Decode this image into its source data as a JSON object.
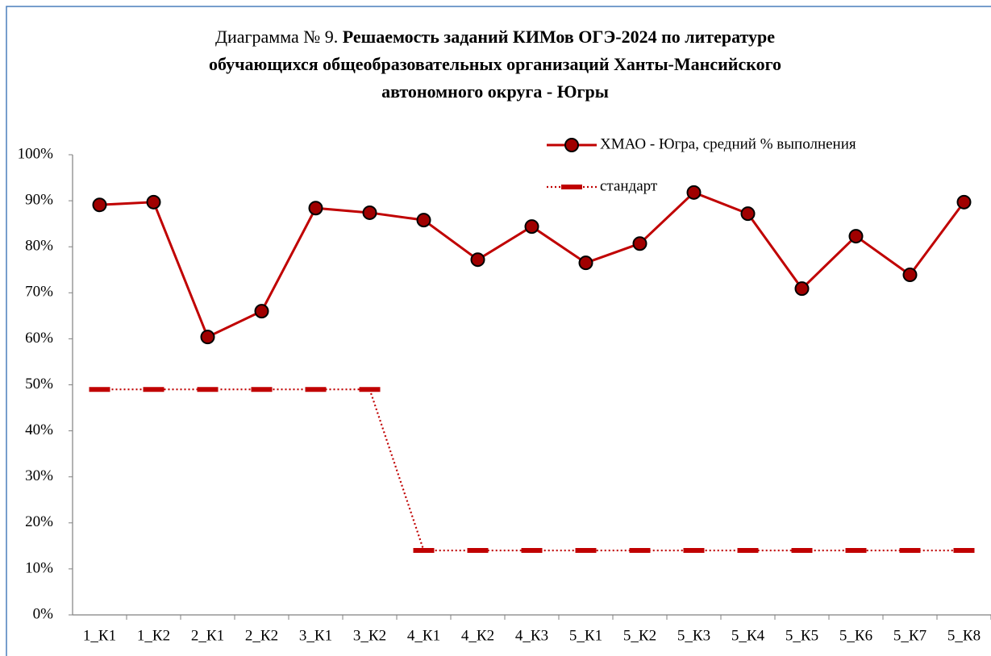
{
  "chart_data": {
    "type": "line",
    "title_prefix": "Диаграмма № 9.",
    "title_lines": [
      "Решаемость заданий КИМов ОГЭ-2024 по литературе",
      "обучающихся общеобразовательных  организаций Ханты-Мансийского",
      "автономного округа - Югры"
    ],
    "categories": [
      "1_К1",
      "1_К2",
      "2_К1",
      "2_К2",
      "3_К1",
      "3_К2",
      "4_К1",
      "4_К2",
      "4_К3",
      "5_К1",
      "5_К2",
      "5_К3",
      "5_К4",
      "5_К5",
      "5_К6",
      "5_К7",
      "5_К8"
    ],
    "series": [
      {
        "name": "ХМАО - Югра, средний % выполнения",
        "color": "#c00000",
        "style": "solid-marker",
        "values": [
          89.1,
          89.7,
          60.4,
          66.0,
          88.4,
          87.4,
          85.8,
          77.2,
          84.4,
          76.5,
          80.7,
          91.8,
          87.2,
          70.9,
          82.3,
          73.9,
          89.7
        ]
      },
      {
        "name": "стандарт",
        "color": "#c00000",
        "style": "dotted-dash",
        "values": [
          49,
          49,
          49,
          49,
          49,
          49,
          14,
          14,
          14,
          14,
          14,
          14,
          14,
          14,
          14,
          14,
          14
        ]
      }
    ],
    "ylim": [
      0,
      100
    ],
    "yticks": [
      {
        "value": 0,
        "label": "0%"
      },
      {
        "value": 10,
        "label": "10%"
      },
      {
        "value": 20,
        "label": "20%"
      },
      {
        "value": 30,
        "label": "30%"
      },
      {
        "value": 40,
        "label": "40%"
      },
      {
        "value": 50,
        "label": "50%"
      },
      {
        "value": 60,
        "label": "60%"
      },
      {
        "value": 70,
        "label": "70%"
      },
      {
        "value": 80,
        "label": "80%"
      },
      {
        "value": 90,
        "label": "90%"
      },
      {
        "value": 100,
        "label": "100%"
      }
    ],
    "grid": false,
    "legend": "upper right"
  }
}
